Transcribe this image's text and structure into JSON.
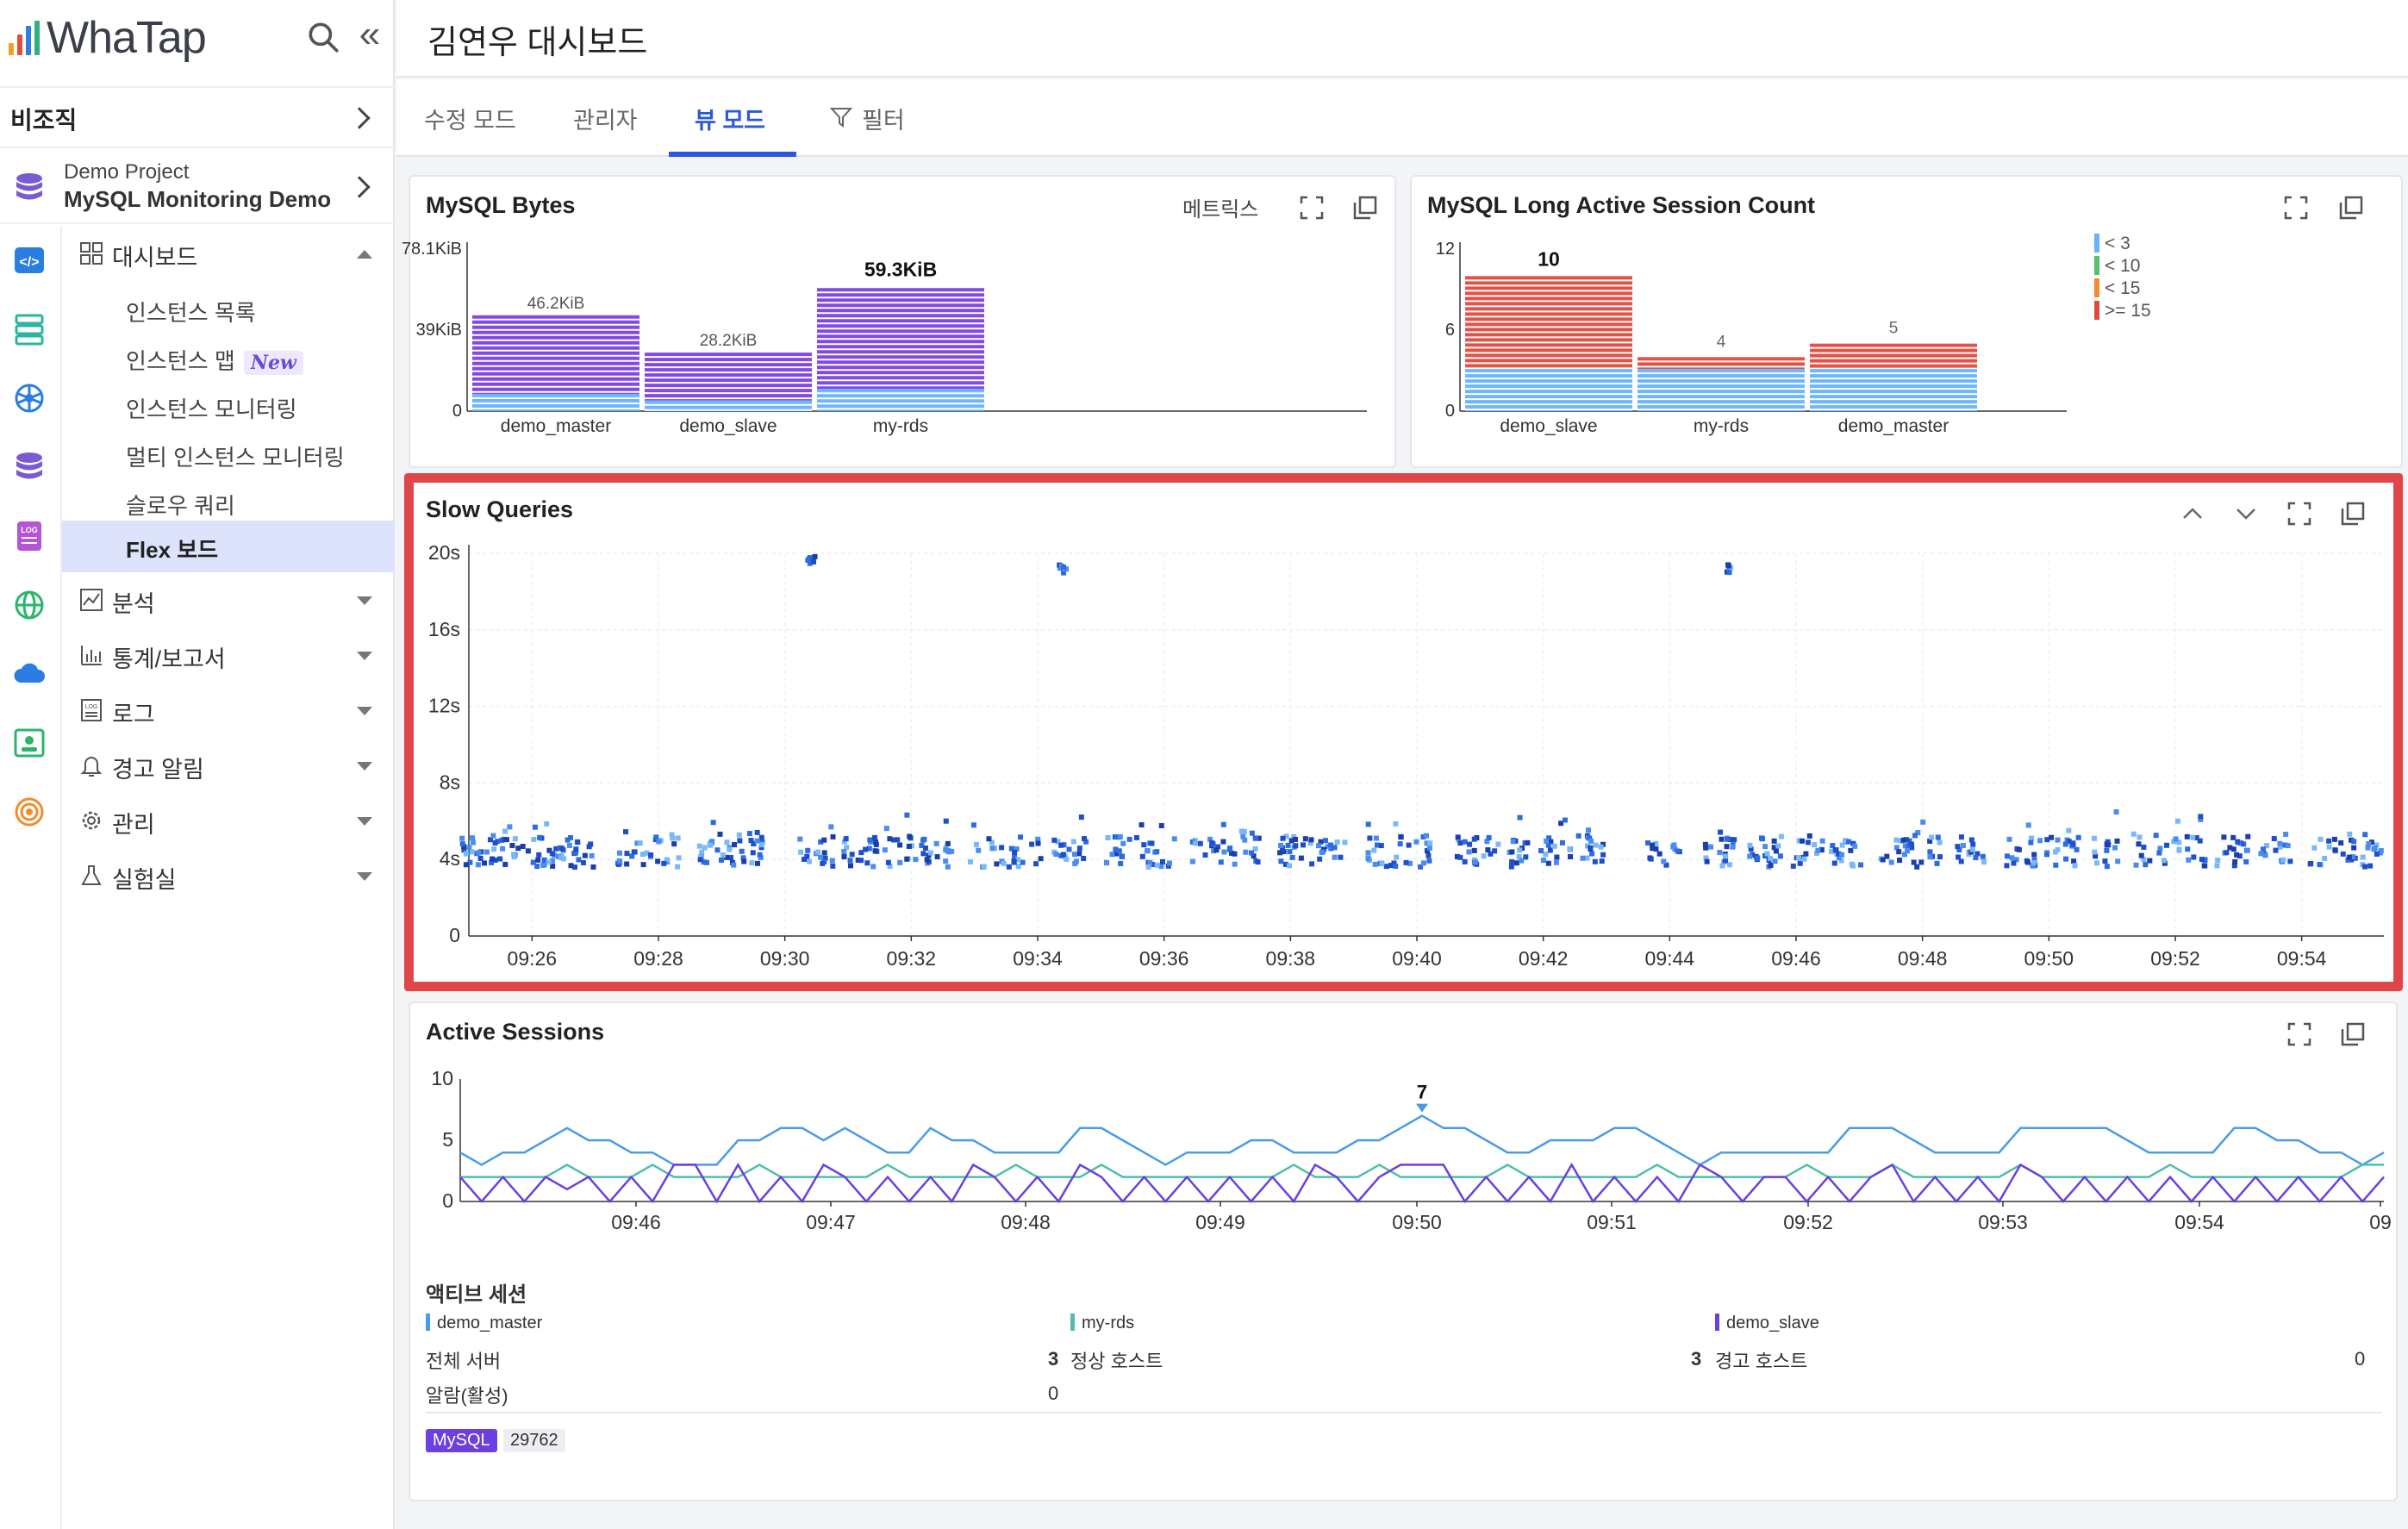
{
  "app": {
    "logo_text": "WhaTap",
    "org_label": "비조직",
    "project_sub": "Demo Project",
    "project_name": "MySQL Monitoring Demo"
  },
  "menu": {
    "dashboard": "대시보드",
    "sub_items": [
      {
        "label": "인스턴스 목록"
      },
      {
        "label": "인스턴스 맵",
        "badge": "New"
      },
      {
        "label": "인스턴스 모니터링"
      },
      {
        "label": "멀티 인스턴스 모니터링"
      },
      {
        "label": "슬로우 쿼리"
      },
      {
        "label": "Flex 보드"
      }
    ],
    "sections": [
      "분석",
      "통계/보고서",
      "로그",
      "경고 알림",
      "관리",
      "실험실"
    ]
  },
  "page": {
    "title": "김연우 대시보드",
    "tabs": [
      "수정 모드",
      "관리자",
      "뷰 모드",
      "필터"
    ],
    "active_tab": "뷰 모드"
  },
  "panels": {
    "bytes": {
      "title": "MySQL Bytes",
      "metrics_label": "메트릭스"
    },
    "long_session": {
      "title": "MySQL Long Active Session Count"
    },
    "slow": {
      "title": "Slow Queries"
    },
    "active": {
      "title": "Active Sessions"
    }
  },
  "colors": {
    "purple": "#7b3fe4",
    "blue": "#2d6be0",
    "light_blue": "#66b2ff",
    "red": "#e2493d",
    "teal": "#4ebfab",
    "highlight": "#e0454a"
  },
  "chart_data": [
    {
      "id": "bytes",
      "type": "bar",
      "categories": [
        "demo_master",
        "demo_slave",
        "my-rds"
      ],
      "values": [
        46.2,
        28.2,
        59.3
      ],
      "value_labels": [
        "46.2KiB",
        "28.2KiB",
        "59.3KiB"
      ],
      "y_ticks": [
        "78.1KiB",
        "39KiB",
        "0"
      ],
      "ylim": [
        0,
        78.1
      ]
    },
    {
      "id": "long_session",
      "type": "bar",
      "categories": [
        "demo_slave",
        "my-rds",
        "demo_master"
      ],
      "values": [
        10,
        4,
        5
      ],
      "value_labels": [
        "10",
        "4",
        "5"
      ],
      "y_ticks": [
        "12",
        "6",
        "0"
      ],
      "ylim": [
        0,
        12
      ],
      "legend": [
        {
          "label": "< 3",
          "color": "#66b2ff"
        },
        {
          "label": "< 10",
          "color": "#55c16b"
        },
        {
          "label": "< 15",
          "color": "#f08c2a"
        },
        {
          "label": ">= 15",
          "color": "#e2493d"
        }
      ]
    },
    {
      "id": "slow",
      "type": "scatter",
      "y_ticks": [
        "20s",
        "16s",
        "12s",
        "8s",
        "4s",
        "0"
      ],
      "ylim": [
        0,
        20
      ],
      "x_ticks": [
        "09:26",
        "09:28",
        "09:30",
        "09:32",
        "09:34",
        "09:36",
        "09:38",
        "09:40",
        "09:42",
        "09:44",
        "09:46",
        "09:48",
        "09:50",
        "09:52",
        "09:54"
      ],
      "xlim_minutes": [
        25.0,
        55.3
      ],
      "outliers": [
        {
          "x": 30.4,
          "y": 19.7
        },
        {
          "x": 34.4,
          "y": 19.2
        },
        {
          "x": 44.9,
          "y": 19.2
        }
      ],
      "cluster_minutes": [
        25.1,
        25.6,
        26.2,
        26.7,
        27.6,
        28.1,
        28.9,
        29.4,
        30.5,
        31.2,
        31.8,
        32.4,
        33.2,
        33.8,
        34.5,
        35.3,
        35.9,
        36.7,
        37.3,
        38.1,
        38.7,
        39.5,
        40.0,
        40.9,
        41.5,
        42.2,
        42.7,
        43.9,
        44.8,
        45.5,
        46.2,
        46.8,
        47.6,
        48.1,
        48.8,
        49.6,
        50.2,
        50.9,
        51.6,
        52.2,
        52.9,
        53.6,
        54.4,
        55.0
      ]
    },
    {
      "id": "active",
      "type": "line",
      "y_ticks": [
        "10",
        "5",
        "0"
      ],
      "ylim": [
        0,
        10
      ],
      "x_ticks": [
        "09:46",
        "09:47",
        "09:48",
        "09:49",
        "09:50",
        "09:51",
        "09:52",
        "09:53",
        "09:54",
        "09"
      ],
      "peak_label": "7",
      "series": [
        {
          "name": "demo_master",
          "color": "#4a9be8",
          "values": [
            4,
            3,
            4,
            4,
            5,
            6,
            5,
            5,
            4,
            4,
            3,
            3,
            3,
            5,
            5,
            6,
            6,
            5,
            6,
            5,
            4,
            4,
            6,
            5,
            5,
            4,
            4,
            4,
            4,
            6,
            6,
            5,
            4,
            3,
            4,
            4,
            4,
            5,
            5,
            4,
            4,
            4,
            5,
            5,
            6,
            7,
            6,
            6,
            5,
            4,
            4,
            5,
            5,
            5,
            6,
            6,
            5,
            4,
            3,
            4,
            4,
            4,
            4,
            4,
            4,
            6,
            6,
            6,
            5,
            4,
            4,
            4,
            4,
            6,
            6,
            6,
            6,
            6,
            5,
            4,
            4,
            4,
            4,
            6,
            6,
            5,
            5,
            4,
            4,
            3,
            4
          ]
        },
        {
          "name": "my-rds",
          "color": "#4ebfab",
          "values": [
            2,
            2,
            2,
            2,
            2,
            3,
            2,
            2,
            2,
            3,
            2,
            2,
            2,
            2,
            3,
            2,
            2,
            2,
            2,
            2,
            3,
            2,
            2,
            2,
            2,
            2,
            3,
            2,
            2,
            2,
            3,
            2,
            2,
            2,
            2,
            2,
            2,
            2,
            2,
            3,
            2,
            2,
            2,
            3,
            2,
            2,
            2,
            2,
            2,
            3,
            2,
            2,
            2,
            2,
            2,
            2,
            3,
            2,
            2,
            2,
            2,
            2,
            2,
            3,
            2,
            2,
            2,
            3,
            2,
            2,
            2,
            2,
            2,
            3,
            2,
            2,
            2,
            2,
            2,
            2,
            3,
            2,
            2,
            2,
            2,
            2,
            2,
            2,
            2,
            3,
            3
          ]
        },
        {
          "name": "demo_slave",
          "color": "#6b3fe0",
          "values": [
            2,
            0,
            2,
            0,
            2,
            1,
            2,
            0,
            2,
            0,
            3,
            3,
            0,
            3,
            0,
            2,
            0,
            3,
            2,
            0,
            2,
            0,
            2,
            0,
            3,
            2,
            0,
            2,
            0,
            3,
            2,
            0,
            2,
            0,
            2,
            0,
            2,
            0,
            2,
            0,
            3,
            2,
            0,
            2,
            3,
            3,
            3,
            0,
            2,
            0,
            2,
            0,
            3,
            0,
            2,
            0,
            2,
            0,
            3,
            2,
            0,
            2,
            2,
            0,
            2,
            0,
            2,
            3,
            0,
            2,
            0,
            2,
            0,
            3,
            2,
            0,
            2,
            0,
            2,
            0,
            2,
            0,
            2,
            0,
            2,
            0,
            2,
            0,
            2,
            0,
            2
          ]
        }
      ]
    }
  ],
  "summary": {
    "heading": "액티브 세션",
    "legend": [
      "demo_master",
      "my-rds",
      "demo_slave"
    ],
    "rows": [
      {
        "label": "전체 서버",
        "value": "3"
      },
      {
        "label": "정상 호스트",
        "value": "3"
      },
      {
        "label": "경고 호스트",
        "value": "0"
      },
      {
        "label": "알람(활성)",
        "value": "0"
      }
    ],
    "tags": [
      "MySQL",
      "29762"
    ]
  }
}
